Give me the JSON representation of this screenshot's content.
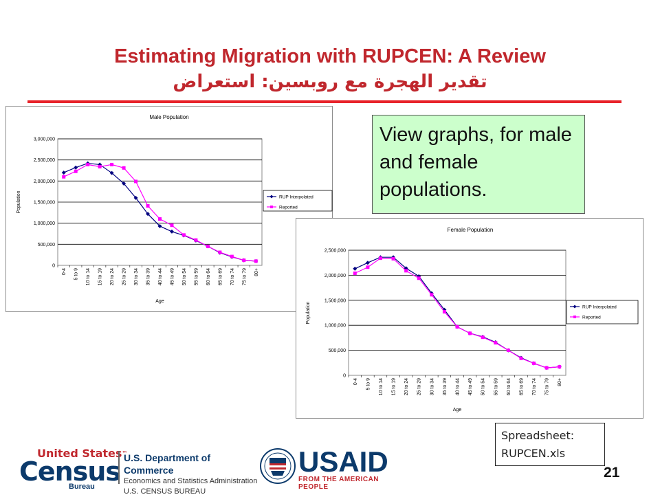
{
  "slide": {
    "title_en": "Estimating Migration with RUPCEN:  A Review",
    "title_ar": "تقدير الهجرة مع روبسين: استعراض",
    "note_text": "View graphs, for male and female populations.",
    "spreadsheet_line1": "Spreadsheet:",
    "spreadsheet_line2": "RUPCEN.xls",
    "page_number": "21"
  },
  "footer": {
    "census_line1": "United States",
    "census_tm": "™",
    "census_line2": "Census",
    "census_line3": "Bureau",
    "commerce_line1": "U.S. Department of Commerce",
    "commerce_line2": "Economics and Statistics Administration",
    "commerce_line3": "U.S. CENSUS BUREAU",
    "usaid_word": "USAID",
    "usaid_sub": "FROM THE AMERICAN PEOPLE",
    "census_color": "#c0272d",
    "navy_color": "#0c3a6b"
  },
  "chart_data": [
    {
      "type": "line",
      "title": "Male Population",
      "xlabel": "Age",
      "ylabel": "Population",
      "categories": [
        "0-4",
        "5 to 9",
        "10 to 14",
        "15 to 19",
        "20 to 24",
        "25 to 29",
        "30 to 34",
        "35 to 39",
        "40 to 44",
        "45 to 49",
        "50 to 54",
        "55 to 59",
        "60 to 64",
        "65 to 69",
        "70 to 74",
        "75 to 79",
        "80+"
      ],
      "ylim": [
        0,
        3000000
      ],
      "yticks": [
        0,
        500000,
        1000000,
        1500000,
        2000000,
        2500000,
        3000000
      ],
      "ytick_labels": [
        "0",
        "500,000",
        "1,000,000",
        "1,500,000",
        "2,000,000",
        "2,500,000",
        "3,000,000"
      ],
      "grid": true,
      "legend_position": "right",
      "series": [
        {
          "name": "RUP Interpolated",
          "color": "#000080",
          "marker": "diamond",
          "values": [
            2200000,
            2320000,
            2420000,
            2390000,
            2190000,
            1940000,
            1600000,
            1220000,
            930000,
            800000,
            710000,
            590000,
            450000,
            300000,
            200000,
            120000,
            100000
          ]
        },
        {
          "name": "Reported",
          "color": "#ff00ff",
          "marker": "square",
          "values": [
            2100000,
            2230000,
            2390000,
            2340000,
            2390000,
            2310000,
            1990000,
            1410000,
            1100000,
            950000,
            720000,
            600000,
            450000,
            310000,
            210000,
            120000,
            100000
          ]
        }
      ]
    },
    {
      "type": "line",
      "title": "Female Population",
      "xlabel": "Age",
      "ylabel": "Population",
      "categories": [
        "0-4",
        "5 to 9",
        "10 to 14",
        "15 to 19",
        "20 to 24",
        "25 to 29",
        "30 to 34",
        "35 to 39",
        "40 to 44",
        "45 to 49",
        "50 to 54",
        "55 to 59",
        "60 to 64",
        "65 to 69",
        "70 to 74",
        "75 to 79",
        "80+"
      ],
      "ylim": [
        0,
        2500000
      ],
      "yticks": [
        0,
        500000,
        1000000,
        1500000,
        2000000,
        2500000
      ],
      "ytick_labels": [
        "0",
        "500,000",
        "1,000,000",
        "1,500,000",
        "2,000,000",
        "2,500,000"
      ],
      "grid": true,
      "legend_position": "right",
      "series": [
        {
          "name": "RUP Interpolated",
          "color": "#000080",
          "marker": "diamond",
          "values": [
            2130000,
            2250000,
            2360000,
            2360000,
            2140000,
            1980000,
            1640000,
            1310000,
            970000,
            840000,
            770000,
            660000,
            500000,
            350000,
            240000,
            150000,
            170000
          ]
        },
        {
          "name": "Reported",
          "color": "#ff00ff",
          "marker": "square",
          "values": [
            2040000,
            2160000,
            2340000,
            2330000,
            2090000,
            1940000,
            1610000,
            1270000,
            970000,
            840000,
            760000,
            650000,
            500000,
            340000,
            240000,
            150000,
            170000
          ]
        }
      ]
    }
  ]
}
